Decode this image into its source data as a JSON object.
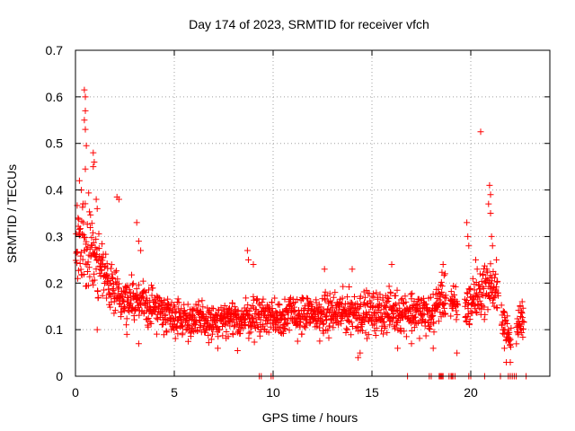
{
  "chart_data": {
    "type": "scatter",
    "title": "Day 174 of 2023, SRMTID for receiver vfch",
    "xlabel": "GPS time / hours",
    "ylabel": "SRMTID / TECUs",
    "xlim": [
      0,
      24
    ],
    "ylim": [
      0,
      0.7
    ],
    "xticks": [
      0,
      5,
      10,
      15,
      20
    ],
    "xtick_labels": [
      "0",
      "5",
      "10",
      "15",
      "20"
    ],
    "yticks": [
      0,
      0.1,
      0.2,
      0.3,
      0.4,
      0.5,
      0.6,
      0.7
    ],
    "ytick_labels": [
      "0",
      "0.1",
      "0.2",
      "0.3",
      "0.4",
      "0.5",
      "0.6",
      "0.7"
    ],
    "grid": true,
    "marker": "+",
    "color": "#ff0000",
    "series": [
      {
        "name": "vfch",
        "envelope": {
          "hours": [
            0,
            0.25,
            0.5,
            0.75,
            1.0,
            1.5,
            2.0,
            2.5,
            3.0,
            3.5,
            4.0,
            5.0,
            6.0,
            7.0,
            8.0,
            9.0,
            10.0,
            11.0,
            12.0,
            13.0,
            14.0,
            15.0,
            16.0,
            17.0,
            18.0,
            18.5,
            19.0,
            19.5,
            20.0,
            20.5,
            21.0,
            21.5,
            22.0,
            22.5
          ],
          "center": [
            0.26,
            0.27,
            0.29,
            0.27,
            0.25,
            0.21,
            0.19,
            0.17,
            0.16,
            0.155,
            0.15,
            0.13,
            0.12,
            0.115,
            0.12,
            0.13,
            0.13,
            0.13,
            0.13,
            0.135,
            0.14,
            0.135,
            0.14,
            0.14,
            0.13,
            0.17,
            0.16,
            0.13,
            0.16,
            0.18,
            0.2,
            0.15,
            0.07,
            0.12
          ],
          "spread": [
            0.09,
            0.1,
            0.12,
            0.1,
            0.08,
            0.07,
            0.06,
            0.06,
            0.05,
            0.05,
            0.05,
            0.045,
            0.045,
            0.045,
            0.045,
            0.05,
            0.05,
            0.05,
            0.05,
            0.05,
            0.05,
            0.05,
            0.05,
            0.05,
            0.05,
            0.05,
            0.05,
            0.05,
            0.06,
            0.06,
            0.06,
            0.05,
            0.03,
            0.04
          ]
        },
        "peaks": [
          {
            "x": 0.45,
            "y": 0.615
          },
          {
            "x": 0.5,
            "y": 0.6
          },
          {
            "x": 0.5,
            "y": 0.57
          },
          {
            "x": 0.45,
            "y": 0.55
          },
          {
            "x": 0.5,
            "y": 0.53
          },
          {
            "x": 0.55,
            "y": 0.495
          },
          {
            "x": 0.9,
            "y": 0.48
          },
          {
            "x": 0.95,
            "y": 0.46
          },
          {
            "x": 0.9,
            "y": 0.45
          },
          {
            "x": 0.5,
            "y": 0.445
          },
          {
            "x": 0.2,
            "y": 0.42
          },
          {
            "x": 0.3,
            "y": 0.4
          },
          {
            "x": 1.05,
            "y": 0.38
          },
          {
            "x": 1.1,
            "y": 0.36
          },
          {
            "x": 2.1,
            "y": 0.385
          },
          {
            "x": 2.2,
            "y": 0.38
          },
          {
            "x": 3.1,
            "y": 0.33
          },
          {
            "x": 3.2,
            "y": 0.29
          },
          {
            "x": 3.3,
            "y": 0.27
          },
          {
            "x": 8.7,
            "y": 0.27
          },
          {
            "x": 8.75,
            "y": 0.25
          },
          {
            "x": 9.0,
            "y": 0.24
          },
          {
            "x": 12.6,
            "y": 0.23
          },
          {
            "x": 14.0,
            "y": 0.23
          },
          {
            "x": 16.0,
            "y": 0.24
          },
          {
            "x": 18.6,
            "y": 0.24
          },
          {
            "x": 18.7,
            "y": 0.22
          },
          {
            "x": 19.8,
            "y": 0.33
          },
          {
            "x": 19.85,
            "y": 0.3
          },
          {
            "x": 19.9,
            "y": 0.28
          },
          {
            "x": 20.25,
            "y": 0.25
          },
          {
            "x": 20.5,
            "y": 0.525
          },
          {
            "x": 20.95,
            "y": 0.41
          },
          {
            "x": 21.0,
            "y": 0.39
          },
          {
            "x": 20.9,
            "y": 0.37
          },
          {
            "x": 21.0,
            "y": 0.35
          },
          {
            "x": 21.05,
            "y": 0.3
          },
          {
            "x": 21.1,
            "y": 0.28
          },
          {
            "x": 21.3,
            "y": 0.25
          },
          {
            "x": 22.6,
            "y": 0.16
          },
          {
            "x": 22.5,
            "y": 0.15
          },
          {
            "x": 1.1,
            "y": 0.1
          },
          {
            "x": 2.6,
            "y": 0.09
          },
          {
            "x": 3.2,
            "y": 0.07
          },
          {
            "x": 7.2,
            "y": 0.06
          },
          {
            "x": 8.2,
            "y": 0.055
          },
          {
            "x": 14.4,
            "y": 0.05
          },
          {
            "x": 14.3,
            "y": 0.04
          },
          {
            "x": 16.3,
            "y": 0.06
          },
          {
            "x": 17.0,
            "y": 0.07
          },
          {
            "x": 18.1,
            "y": 0.06
          },
          {
            "x": 19.3,
            "y": 0.05
          },
          {
            "x": 21.7,
            "y": 0.06
          },
          {
            "x": 21.8,
            "y": 0.03
          },
          {
            "x": 22.0,
            "y": 0.03
          }
        ],
        "zero_values": [
          9.3,
          9.4,
          9.9,
          10.0,
          16.8,
          17.9,
          18.0,
          18.4,
          18.45,
          18.5,
          18.55,
          18.6,
          18.9,
          19.0,
          19.05,
          19.1,
          19.2,
          19.9,
          20.0,
          20.7,
          21.5,
          21.9,
          22.0,
          22.1,
          22.2,
          22.3,
          22.8
        ]
      }
    ]
  }
}
